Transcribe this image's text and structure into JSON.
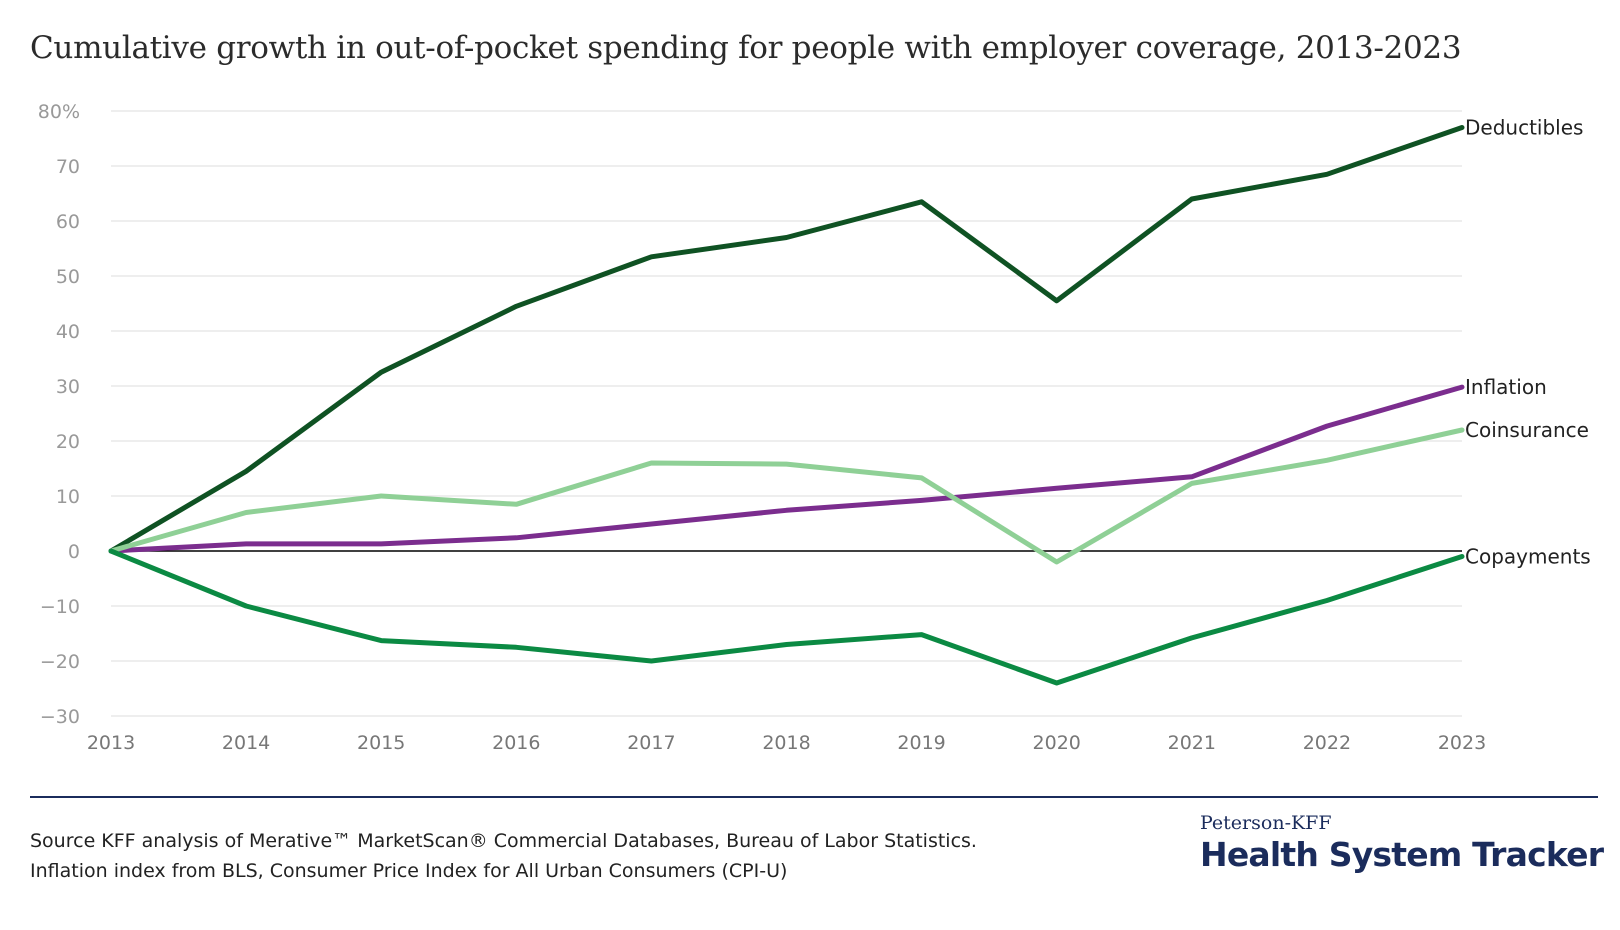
{
  "title": "Cumulative growth in out-of-pocket spending for people with employer coverage, 2013-2023",
  "source_line1": "Source KFF analysis of Merative™ MarketScan® Commercial Databases, Bureau of Labor Statistics.",
  "source_line2": "Inflation index from BLS, Consumer Price Index for All Urban Consumers (CPI-U)",
  "logo_small": "Peterson-KFF",
  "logo_big": "Health System Tracker",
  "colors": {
    "background": "#ffffff",
    "grid": "#e3e3e3",
    "zero_line": "#000000",
    "navy": "#1b2c5c"
  },
  "chart_data": {
    "type": "line",
    "title": "Cumulative growth in out-of-pocket spending for people with employer coverage, 2013-2023",
    "x": [
      2013,
      2014,
      2015,
      2016,
      2017,
      2018,
      2019,
      2020,
      2021,
      2022,
      2023
    ],
    "x_tick_labels": [
      "2013",
      "2014",
      "2015",
      "2016",
      "2017",
      "2018",
      "2019",
      "2020",
      "2021",
      "2022",
      "2023"
    ],
    "ylim": [
      -30,
      80
    ],
    "y_ticks": [
      80,
      70,
      60,
      50,
      40,
      30,
      20,
      10,
      0,
      -10,
      -20,
      -30
    ],
    "y_tick_labels": [
      "80%",
      "70",
      "60",
      "50",
      "40",
      "30",
      "20",
      "10",
      "0",
      "−10",
      "−20",
      "−30"
    ],
    "grid": true,
    "legend": "direct labels at line ends (right)",
    "series": [
      {
        "name": "Deductibles",
        "color": "#0f5223",
        "values": [
          0,
          14.5,
          32.5,
          44.5,
          53.5,
          57,
          63.5,
          45.5,
          64,
          68.5,
          77
        ]
      },
      {
        "name": "Inflation",
        "color": "#7b2d8e",
        "values": [
          0,
          1.3,
          1.3,
          2.4,
          4.9,
          7.4,
          9.2,
          11.4,
          13.5,
          22.7,
          29.8
        ]
      },
      {
        "name": "Coinsurance",
        "color": "#8fd096",
        "values": [
          0,
          7,
          10,
          8.5,
          16,
          15.8,
          13.3,
          -2,
          12.3,
          16.5,
          22
        ]
      },
      {
        "name": "Copayments",
        "color": "#0b8a43",
        "values": [
          0,
          -10,
          -16.3,
          -17.5,
          -20,
          -17,
          -15.2,
          -24,
          -15.8,
          -9,
          -1
        ]
      }
    ]
  }
}
